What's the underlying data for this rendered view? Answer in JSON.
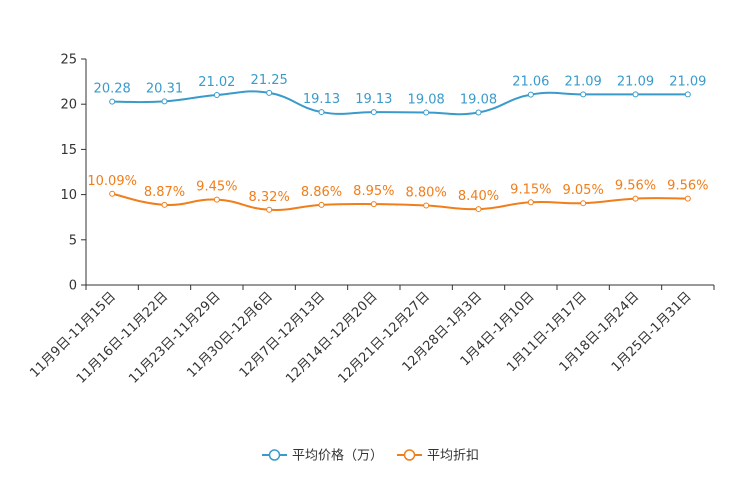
{
  "chart_data": {
    "type": "line",
    "categories": [
      "11月9日-11月15日",
      "11月16日-11月22日",
      "11月23日-11月29日",
      "11月30日-12月6日",
      "12月7日-12月13日",
      "12月14日-12月20日",
      "12月21日-12月27日",
      "12月28日-1月3日",
      "1月4日-1月10日",
      "1月11日-1月17日",
      "1月18日-1月24日",
      "1月25日-1月31日"
    ],
    "ylim": [
      0,
      25
    ],
    "yticks": [
      0,
      5,
      10,
      15,
      20,
      25
    ],
    "series": [
      {
        "name": "平均价格（万）",
        "color": "#3a9bcb",
        "values": [
          20.28,
          20.31,
          21.02,
          21.25,
          19.13,
          19.13,
          19.08,
          19.08,
          21.06,
          21.09,
          21.09,
          21.09
        ],
        "labels": [
          "20.28",
          "20.31",
          "21.02",
          "21.25",
          "19.13",
          "19.13",
          "19.08",
          "19.08",
          "21.06",
          "21.09",
          "21.09",
          "21.09"
        ]
      },
      {
        "name": "平均折扣",
        "color": "#f07e1b",
        "values": [
          10.09,
          8.87,
          9.45,
          8.32,
          8.86,
          8.95,
          8.8,
          8.4,
          9.15,
          9.05,
          9.56,
          9.56
        ],
        "labels": [
          "10.09%",
          "8.87%",
          "9.45%",
          "8.32%",
          "8.86%",
          "8.95%",
          "8.80%",
          "8.40%",
          "9.15%",
          "9.05%",
          "9.56%",
          "9.56%"
        ]
      }
    ]
  }
}
